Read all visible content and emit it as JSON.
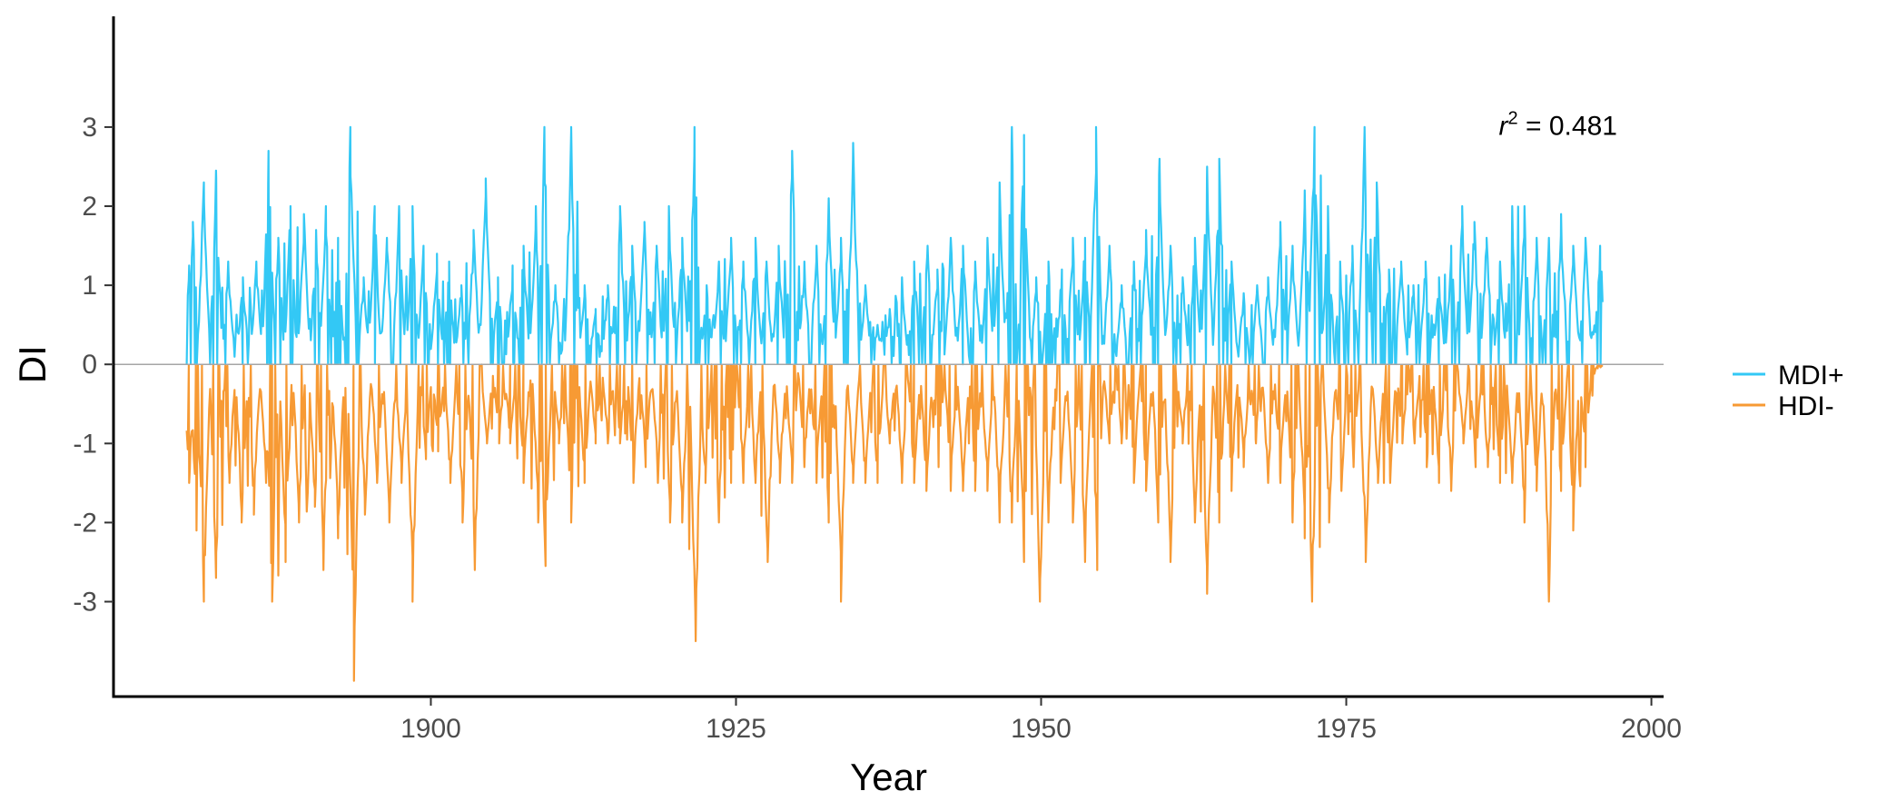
{
  "chart_data": {
    "type": "line",
    "title": "",
    "xlabel": "Year",
    "ylabel": "DI",
    "xlim": [
      1874,
      2001
    ],
    "ylim": [
      -4.2,
      4.4
    ],
    "x_ticks": [
      1900,
      1925,
      1950,
      1975,
      2000
    ],
    "y_ticks": [
      3,
      2,
      1,
      0,
      -1,
      -2,
      -3
    ],
    "y_tick_labels": [
      "3",
      "2",
      "1",
      "0",
      "-1",
      "-2",
      "-3"
    ],
    "zero_line": true,
    "grid": false,
    "legend": {
      "position": "right"
    },
    "annotation": {
      "base": "r",
      "superscript": "2",
      "text": " = 0.481",
      "x": 1987.5,
      "y": 2.9
    },
    "time_range": [
      1880,
      1996
    ],
    "series": [
      {
        "name": "MDI+",
        "color": "#33c8f5",
        "peaks": [
          [
            1880.2,
            1.25
          ],
          [
            1880.5,
            1.8
          ],
          [
            1881.4,
            2.3
          ],
          [
            1882.4,
            2.45
          ],
          [
            1883.4,
            1.3
          ],
          [
            1884.6,
            1.1
          ],
          [
            1885.7,
            1.3
          ],
          [
            1886.7,
            2.7
          ],
          [
            1887.5,
            1.6
          ],
          [
            1888.5,
            2.0
          ],
          [
            1889.6,
            1.9
          ],
          [
            1890.6,
            1.7
          ],
          [
            1891.4,
            2.0
          ],
          [
            1892.4,
            1.6
          ],
          [
            1893.4,
            3.0
          ],
          [
            1894.5,
            1.1
          ],
          [
            1895.4,
            2.0
          ],
          [
            1896.4,
            1.6
          ],
          [
            1897.4,
            2.0
          ],
          [
            1898.5,
            2.0
          ],
          [
            1899.4,
            1.5
          ],
          [
            1900.5,
            1.4
          ],
          [
            1901.5,
            1.3
          ],
          [
            1902.5,
            1.0
          ],
          [
            1903.5,
            1.7
          ],
          [
            1904.5,
            2.35
          ],
          [
            1905.5,
            1.1
          ],
          [
            1906.7,
            1.25
          ],
          [
            1907.6,
            1.5
          ],
          [
            1908.6,
            2.0
          ],
          [
            1909.3,
            3.0
          ],
          [
            1910.2,
            1.0
          ],
          [
            1911.5,
            3.0
          ],
          [
            1912.6,
            1.0
          ],
          [
            1913.5,
            0.7
          ],
          [
            1914.5,
            1.0
          ],
          [
            1915.5,
            2.0
          ],
          [
            1916.5,
            1.5
          ],
          [
            1917.5,
            1.8
          ],
          [
            1918.5,
            1.5
          ],
          [
            1919.5,
            2.0
          ],
          [
            1920.6,
            1.6
          ],
          [
            1921.6,
            3.0
          ],
          [
            1922.6,
            1.0
          ],
          [
            1923.6,
            1.3
          ],
          [
            1924.6,
            1.6
          ],
          [
            1925.6,
            1.3
          ],
          [
            1926.6,
            1.6
          ],
          [
            1927.5,
            1.3
          ],
          [
            1928.5,
            1.5
          ],
          [
            1929.6,
            2.7
          ],
          [
            1930.6,
            1.3
          ],
          [
            1931.6,
            1.5
          ],
          [
            1932.6,
            2.1
          ],
          [
            1933.6,
            1.6
          ],
          [
            1934.6,
            2.8
          ],
          [
            1935.6,
            1.0
          ],
          [
            1936.6,
            0.5
          ],
          [
            1937.6,
            0.7
          ],
          [
            1938.6,
            1.1
          ],
          [
            1939.6,
            1.3
          ],
          [
            1940.7,
            1.5
          ],
          [
            1941.5,
            1.2
          ],
          [
            1942.6,
            1.6
          ],
          [
            1943.6,
            1.5
          ],
          [
            1944.6,
            1.3
          ],
          [
            1945.6,
            1.6
          ],
          [
            1946.6,
            2.3
          ],
          [
            1947.6,
            3.0
          ],
          [
            1948.6,
            2.9
          ],
          [
            1949.6,
            1.1
          ],
          [
            1950.6,
            1.3
          ],
          [
            1951.7,
            1.2
          ],
          [
            1952.6,
            1.6
          ],
          [
            1953.6,
            1.6
          ],
          [
            1954.5,
            3.0
          ],
          [
            1955.6,
            1.5
          ],
          [
            1956.6,
            1.0
          ],
          [
            1957.6,
            1.3
          ],
          [
            1958.6,
            1.7
          ],
          [
            1959.7,
            2.6
          ],
          [
            1960.6,
            1.5
          ],
          [
            1961.6,
            1.1
          ],
          [
            1962.6,
            1.6
          ],
          [
            1963.6,
            2.5
          ],
          [
            1964.6,
            2.6
          ],
          [
            1965.6,
            1.3
          ],
          [
            1966.6,
            0.9
          ],
          [
            1967.7,
            1.0
          ],
          [
            1968.6,
            1.1
          ],
          [
            1969.6,
            1.8
          ],
          [
            1970.6,
            1.5
          ],
          [
            1971.6,
            2.2
          ],
          [
            1972.4,
            3.0
          ],
          [
            1973.5,
            2.0
          ],
          [
            1974.5,
            1.3
          ],
          [
            1975.5,
            1.5
          ],
          [
            1976.5,
            3.0
          ],
          [
            1977.5,
            2.3
          ],
          [
            1978.5,
            1.2
          ],
          [
            1979.5,
            1.3
          ],
          [
            1980.5,
            1.0
          ],
          [
            1981.5,
            1.3
          ],
          [
            1982.6,
            1.1
          ],
          [
            1983.6,
            1.5
          ],
          [
            1984.5,
            2.0
          ],
          [
            1985.5,
            1.8
          ],
          [
            1986.5,
            1.6
          ],
          [
            1987.6,
            1.3
          ],
          [
            1988.6,
            2.0
          ],
          [
            1989.6,
            2.0
          ],
          [
            1990.6,
            1.6
          ],
          [
            1991.6,
            1.6
          ],
          [
            1992.6,
            1.9
          ],
          [
            1993.6,
            1.5
          ],
          [
            1994.6,
            1.6
          ],
          [
            1995.8,
            1.5
          ]
        ]
      },
      {
        "name": "HDI-",
        "color": "#f79a34",
        "peaks": [
          [
            1880.2,
            -1.5
          ],
          [
            1880.8,
            -2.1
          ],
          [
            1881.4,
            -3.0
          ],
          [
            1882.4,
            -2.7
          ],
          [
            1883.5,
            -1.5
          ],
          [
            1884.5,
            -2.0
          ],
          [
            1885.5,
            -1.9
          ],
          [
            1886.5,
            -1.5
          ],
          [
            1887.0,
            -3.0
          ],
          [
            1888.1,
            -2.5
          ],
          [
            1889.2,
            -2.0
          ],
          [
            1890.5,
            -1.8
          ],
          [
            1891.2,
            -2.6
          ],
          [
            1892.4,
            -2.2
          ],
          [
            1893.7,
            -4.0
          ],
          [
            1894.6,
            -1.9
          ],
          [
            1895.6,
            -1.5
          ],
          [
            1896.6,
            -2.0
          ],
          [
            1897.6,
            -1.5
          ],
          [
            1898.5,
            -3.0
          ],
          [
            1899.6,
            -1.2
          ],
          [
            1900.6,
            -1.1
          ],
          [
            1901.6,
            -1.5
          ],
          [
            1902.6,
            -2.0
          ],
          [
            1903.6,
            -2.6
          ],
          [
            1904.6,
            -1.0
          ],
          [
            1905.6,
            -1.0
          ],
          [
            1906.5,
            -1.0
          ],
          [
            1907.6,
            -1.5
          ],
          [
            1908.8,
            -2.0
          ],
          [
            1909.4,
            -2.55
          ],
          [
            1910.5,
            -1.0
          ],
          [
            1911.5,
            -2.0
          ],
          [
            1912.6,
            -1.5
          ],
          [
            1913.5,
            -1.0
          ],
          [
            1914.5,
            -1.0
          ],
          [
            1915.5,
            -1.0
          ],
          [
            1916.6,
            -1.5
          ],
          [
            1917.6,
            -1.3
          ],
          [
            1918.6,
            -1.5
          ],
          [
            1919.6,
            -2.0
          ],
          [
            1920.6,
            -2.0
          ],
          [
            1921.7,
            -3.5
          ],
          [
            1922.5,
            -1.5
          ],
          [
            1923.6,
            -2.0
          ],
          [
            1924.6,
            -1.5
          ],
          [
            1925.6,
            -1.5
          ],
          [
            1926.6,
            -1.5
          ],
          [
            1927.6,
            -2.5
          ],
          [
            1928.6,
            -1.5
          ],
          [
            1929.6,
            -1.5
          ],
          [
            1930.6,
            -1.3
          ],
          [
            1931.6,
            -1.5
          ],
          [
            1932.6,
            -2.0
          ],
          [
            1933.6,
            -3.0
          ],
          [
            1934.6,
            -1.5
          ],
          [
            1935.6,
            -1.5
          ],
          [
            1936.6,
            -1.5
          ],
          [
            1937.6,
            -1.0
          ],
          [
            1938.6,
            -1.5
          ],
          [
            1939.6,
            -1.5
          ],
          [
            1940.6,
            -1.6
          ],
          [
            1941.6,
            -1.3
          ],
          [
            1942.6,
            -1.6
          ],
          [
            1943.6,
            -1.6
          ],
          [
            1944.6,
            -1.6
          ],
          [
            1945.6,
            -1.6
          ],
          [
            1946.6,
            -2.0
          ],
          [
            1947.6,
            -2.0
          ],
          [
            1948.6,
            -2.5
          ],
          [
            1949.9,
            -3.0
          ],
          [
            1950.6,
            -2.0
          ],
          [
            1951.6,
            -1.5
          ],
          [
            1952.6,
            -2.0
          ],
          [
            1953.6,
            -2.5
          ],
          [
            1954.6,
            -2.6
          ],
          [
            1955.6,
            -1.0
          ],
          [
            1956.6,
            -1.0
          ],
          [
            1957.6,
            -1.5
          ],
          [
            1958.6,
            -1.6
          ],
          [
            1959.6,
            -2.0
          ],
          [
            1960.6,
            -2.5
          ],
          [
            1961.6,
            -1.0
          ],
          [
            1962.6,
            -2.0
          ],
          [
            1963.6,
            -2.9
          ],
          [
            1964.6,
            -2.0
          ],
          [
            1965.6,
            -1.6
          ],
          [
            1966.6,
            -1.3
          ],
          [
            1967.6,
            -1.0
          ],
          [
            1968.6,
            -1.5
          ],
          [
            1969.6,
            -1.5
          ],
          [
            1970.6,
            -2.0
          ],
          [
            1971.6,
            -2.2
          ],
          [
            1972.2,
            -3.0
          ],
          [
            1973.6,
            -2.0
          ],
          [
            1974.6,
            -1.6
          ],
          [
            1975.6,
            -1.3
          ],
          [
            1976.6,
            -2.5
          ],
          [
            1977.6,
            -1.5
          ],
          [
            1978.6,
            -1.5
          ],
          [
            1979.6,
            -1.0
          ],
          [
            1980.6,
            -1.0
          ],
          [
            1981.6,
            -1.3
          ],
          [
            1982.6,
            -1.5
          ],
          [
            1983.6,
            -1.6
          ],
          [
            1984.6,
            -1.0
          ],
          [
            1985.6,
            -1.3
          ],
          [
            1986.6,
            -1.3
          ],
          [
            1987.6,
            -1.5
          ],
          [
            1988.6,
            -1.5
          ],
          [
            1989.6,
            -2.0
          ],
          [
            1990.6,
            -1.6
          ],
          [
            1991.6,
            -3.0
          ],
          [
            1992.6,
            -1.6
          ],
          [
            1993.6,
            -2.1
          ],
          [
            1994.6,
            -1.3
          ],
          [
            1995.6,
            -0.05
          ]
        ]
      }
    ]
  }
}
